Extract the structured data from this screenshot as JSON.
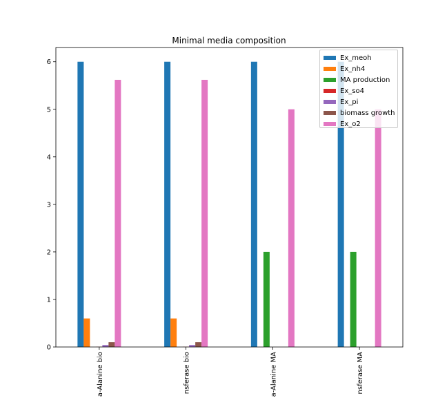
{
  "chart_data": {
    "type": "bar",
    "title": "Minimal media composition",
    "xlabel": "",
    "ylabel": "",
    "categories": [
      "a-Alanine bio",
      "nsferase bio",
      "a-Alanine MA",
      "nsferase MA"
    ],
    "ylim": [
      0,
      6.3
    ],
    "yticks": [
      0,
      1,
      2,
      3,
      4,
      5,
      6
    ],
    "grid": false,
    "legend_position": "top-right",
    "series": [
      {
        "name": "Ex_meoh",
        "color": "#1f77b4",
        "values": [
          6.0,
          6.0,
          6.0,
          6.0
        ]
      },
      {
        "name": "Ex_nh4",
        "color": "#ff7f0e",
        "values": [
          0.6,
          0.6,
          0.0,
          0.0
        ]
      },
      {
        "name": "MA production",
        "color": "#2ca02c",
        "values": [
          0.0,
          0.0,
          2.0,
          2.0
        ]
      },
      {
        "name": "Ex_so4",
        "color": "#d62728",
        "values": [
          0.004,
          0.004,
          0.0,
          0.0
        ]
      },
      {
        "name": "Ex_pi",
        "color": "#9467bd",
        "values": [
          0.04,
          0.04,
          0.0,
          0.0
        ]
      },
      {
        "name": "biomass growth",
        "color": "#8c564b",
        "values": [
          0.1,
          0.1,
          0.0,
          0.0
        ]
      },
      {
        "name": "Ex_o2",
        "color": "#e377c2",
        "values": [
          5.62,
          5.62,
          5.0,
          5.0
        ]
      }
    ]
  }
}
